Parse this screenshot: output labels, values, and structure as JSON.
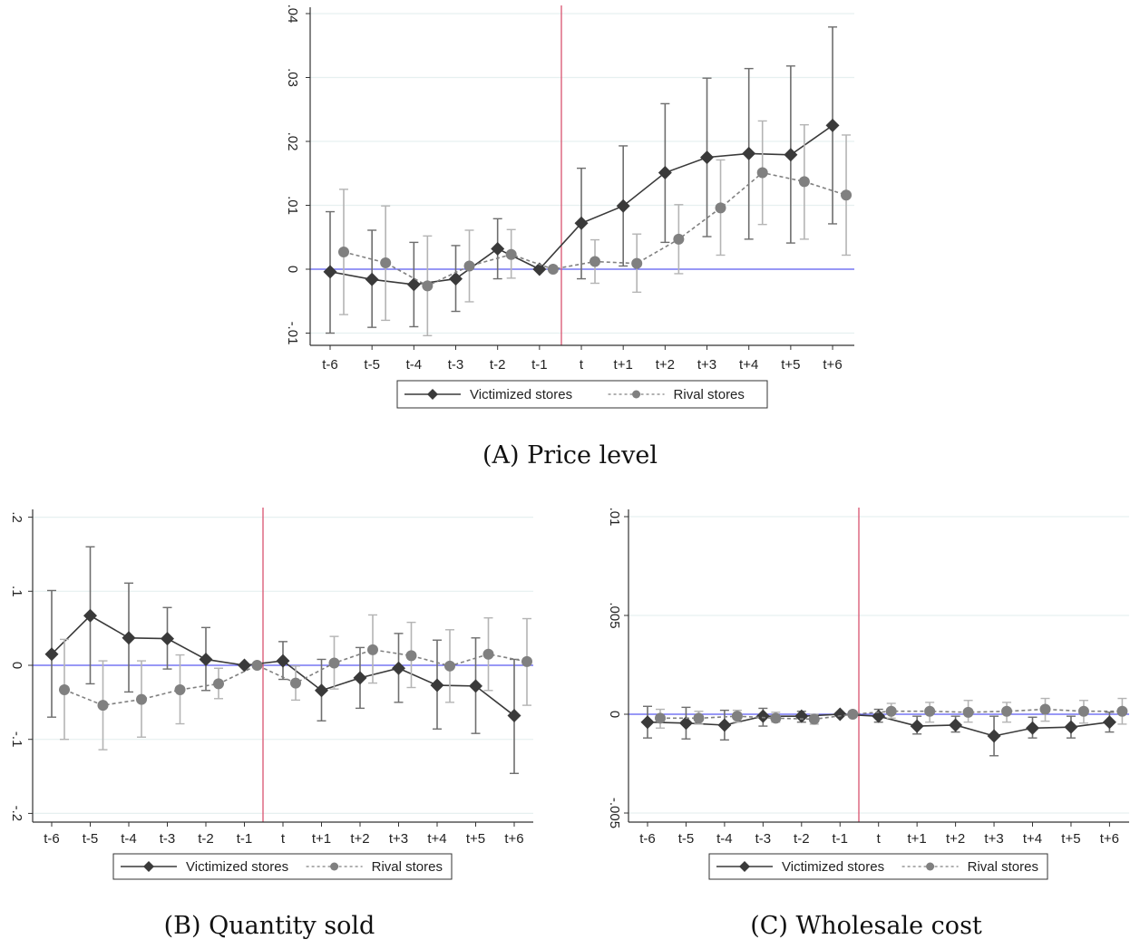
{
  "legend": {
    "victimized": "Victimized stores",
    "rival": "Rival stores"
  },
  "colors": {
    "victimized": "#3a3a3a",
    "rival": "#808080",
    "victimized_ci": "#6e6e6e",
    "rival_ci": "#b4b4b4",
    "zero_line": "#5b5bf0",
    "event_line": "#d9536f",
    "grid": "#e6f0f0"
  },
  "chart_data": [
    {
      "id": "A",
      "type": "line",
      "caption": "(A) Price level",
      "title": "",
      "xlabel": "",
      "ylabel": "",
      "categories": [
        "t-6",
        "t-5",
        "t-4",
        "t-3",
        "t-2",
        "t-1",
        "t",
        "t+1",
        "t+2",
        "t+3",
        "t+4",
        "t+5",
        "t+6"
      ],
      "ylim": [
        -0.012,
        0.041
      ],
      "yticks": [
        -0.01,
        0,
        0.01,
        0.02,
        0.03,
        0.04
      ],
      "ytick_labels": [
        "-.01",
        "0",
        ".01",
        ".02",
        ".03",
        ".04"
      ],
      "grid": true,
      "event_between": [
        "t-1",
        "t"
      ],
      "legend_position": "bottom",
      "series": [
        {
          "name": "Victimized stores",
          "style": "solid-diamond",
          "values": [
            -0.0004,
            -0.0016,
            -0.0024,
            -0.0015,
            0.0032,
            0.0,
            0.0072,
            0.0099,
            0.0151,
            0.0175,
            0.0181,
            0.0179,
            0.0225
          ],
          "ci_low": [
            -0.01,
            -0.0091,
            -0.009,
            -0.0066,
            -0.0015,
            null,
            -0.0015,
            0.0005,
            0.0042,
            0.0051,
            0.0047,
            0.0041,
            0.0071
          ],
          "ci_high": [
            0.009,
            0.0061,
            0.0042,
            0.0037,
            0.0079,
            null,
            0.0158,
            0.0193,
            0.0259,
            0.0299,
            0.0314,
            0.0318,
            0.0379
          ]
        },
        {
          "name": "Rival stores",
          "style": "dashed-circle",
          "values": [
            0.0027,
            0.001,
            -0.0026,
            0.0005,
            0.0023,
            0.0,
            0.0012,
            0.0009,
            0.0047,
            0.0096,
            0.0151,
            0.0137,
            0.0116
          ],
          "ci_low": [
            -0.0071,
            -0.008,
            -0.0104,
            -0.0051,
            -0.0014,
            null,
            -0.0022,
            -0.0036,
            -0.0007,
            0.0022,
            0.007,
            0.0047,
            0.0022
          ],
          "ci_high": [
            0.0125,
            0.0099,
            0.0052,
            0.0061,
            0.0062,
            null,
            0.0046,
            0.0055,
            0.0101,
            0.0171,
            0.0232,
            0.0226,
            0.021
          ]
        }
      ]
    },
    {
      "id": "B",
      "type": "line",
      "caption": "(B) Quantity sold",
      "title": "",
      "xlabel": "",
      "ylabel": "",
      "categories": [
        "t-6",
        "t-5",
        "t-4",
        "t-3",
        "t-2",
        "t-1",
        "t",
        "t+1",
        "t+2",
        "t+3",
        "t+4",
        "t+5",
        "t+6"
      ],
      "ylim": [
        -0.213,
        0.213
      ],
      "yticks": [
        -0.2,
        -0.1,
        0,
        0.1,
        0.2
      ],
      "ytick_labels": [
        "-.2",
        "-.1",
        "0",
        ".1",
        ".2"
      ],
      "grid": true,
      "event_between": [
        "t-1",
        "t"
      ],
      "legend_position": "bottom",
      "series": [
        {
          "name": "Victimized stores",
          "style": "solid-diamond",
          "values": [
            0.015,
            0.067,
            0.037,
            0.036,
            0.008,
            0.0,
            0.006,
            -0.034,
            -0.017,
            -0.004,
            -0.027,
            -0.028,
            -0.068
          ],
          "ci_low": [
            -0.07,
            -0.025,
            -0.036,
            -0.005,
            -0.034,
            null,
            -0.019,
            -0.075,
            -0.058,
            -0.05,
            -0.086,
            -0.092,
            -0.146
          ],
          "ci_high": [
            0.101,
            0.16,
            0.111,
            0.078,
            0.051,
            null,
            0.032,
            0.008,
            0.024,
            0.043,
            0.034,
            0.037,
            0.008
          ]
        },
        {
          "name": "Rival stores",
          "style": "dashed-circle",
          "values": [
            -0.033,
            -0.054,
            -0.046,
            -0.033,
            -0.025,
            0.0,
            -0.024,
            0.003,
            0.021,
            0.013,
            -0.001,
            0.015,
            0.005
          ],
          "ci_low": [
            -0.1,
            -0.114,
            -0.097,
            -0.079,
            -0.045,
            null,
            -0.047,
            -0.032,
            -0.024,
            -0.03,
            -0.05,
            -0.034,
            -0.054
          ],
          "ci_high": [
            0.035,
            0.006,
            0.006,
            0.014,
            -0.004,
            null,
            -0.001,
            0.039,
            0.068,
            0.058,
            0.048,
            0.064,
            0.063
          ]
        }
      ]
    },
    {
      "id": "C",
      "type": "line",
      "caption": "(C) Wholesale cost",
      "title": "",
      "xlabel": "",
      "ylabel": "",
      "categories": [
        "t-6",
        "t-5",
        "t-4",
        "t-3",
        "t-2",
        "t-1",
        "t",
        "t+1",
        "t+2",
        "t+3",
        "t+4",
        "t+5",
        "t+6"
      ],
      "ylim": [
        -0.0053,
        0.0103
      ],
      "yticks": [
        -0.005,
        0,
        0.005,
        0.01
      ],
      "ytick_labels": [
        "-.005",
        "0",
        ".005",
        ".01"
      ],
      "grid": true,
      "event_between": [
        "t-1",
        "t"
      ],
      "legend_position": "bottom",
      "series": [
        {
          "name": "Victimized stores",
          "style": "solid-diamond",
          "values": [
            -0.0004,
            -0.00045,
            -0.00055,
            -0.0001,
            -0.0001,
            0.0,
            -0.0001,
            -0.0006,
            -0.00055,
            -0.0011,
            -0.0007,
            -0.00065,
            -0.0004
          ],
          "ci_low": [
            -0.0012,
            -0.00125,
            -0.0013,
            -0.0006,
            -0.0004,
            null,
            -0.0004,
            -0.001,
            -0.0009,
            -0.0021,
            -0.0012,
            -0.0012,
            -0.0009
          ],
          "ci_high": [
            0.0004,
            0.00035,
            0.0002,
            0.0003,
            0.00015,
            null,
            0.00025,
            -0.0001,
            -0.0001,
            -0.0001,
            -0.00015,
            -0.0001,
            0.0001
          ]
        },
        {
          "name": "Rival stores",
          "style": "dashed-circle",
          "values": [
            -0.0002,
            -0.0002,
            -0.0001,
            -0.0002,
            -0.00025,
            0.0,
            0.00015,
            0.00015,
            0.0001,
            0.00015,
            0.00025,
            0.00015,
            0.00015
          ],
          "ci_low": [
            -0.0007,
            -0.0005,
            -0.0004,
            -0.0004,
            -0.0005,
            null,
            -0.0002,
            -0.0004,
            -0.0004,
            -0.0004,
            -0.00035,
            -0.00045,
            -0.0005
          ],
          "ci_high": [
            0.00025,
            0.00015,
            0.0002,
            0.0001,
            0.0,
            null,
            0.00055,
            0.0006,
            0.0007,
            0.0006,
            0.0008,
            0.0007,
            0.0008
          ]
        }
      ]
    }
  ]
}
